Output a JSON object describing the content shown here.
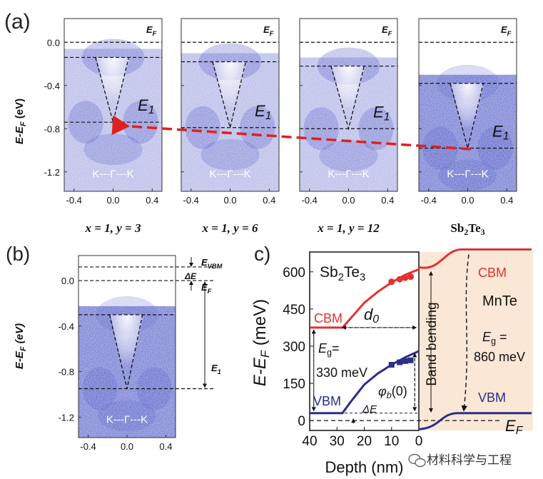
{
  "panel_labels": {
    "a": "(a)",
    "b": "(b)",
    "c": "c)"
  },
  "watermark": "材料科学与工程",
  "colors": {
    "cbm": "#e53030",
    "vbm": "#2a2f8a",
    "arpes": "#3c46c0",
    "arrow": "#e02020",
    "shade": "#fbe7d6"
  },
  "chart_data": [
    {
      "type": "heatmap",
      "panel": "a",
      "ylabel": "E-E_F (eV)",
      "ylabel_main": "E-E",
      "ylabel_sub": "F",
      "ylabel_unit": " (eV)",
      "yticks": [
        0.0,
        -0.4,
        -0.8,
        -1.2
      ],
      "ytick_labels": [
        "0.0",
        "-0.4",
        "-0.8",
        "-1.2"
      ],
      "ylim": [
        -1.38,
        0.22
      ],
      "xticks": [
        -0.4,
        0.0,
        0.4
      ],
      "xtick_labels": [
        "-0.4",
        "0.0",
        "0.4"
      ],
      "xlim": [
        -0.5,
        0.5
      ],
      "ef_label": "E",
      "ef_sub": "F",
      "e1_label": "E",
      "e1_sub": "1",
      "kpath_label": "K---Γ---K",
      "panels": [
        {
          "caption": "x = 1, y = 3",
          "vbm": -0.14,
          "e1": -0.74
        },
        {
          "caption": "x = 1, y = 6",
          "vbm": -0.18,
          "e1": -0.79
        },
        {
          "caption": "x = 1, y = 12",
          "vbm": -0.22,
          "e1": -0.8
        },
        {
          "caption": "Sb2Te3",
          "vbm": -0.38,
          "e1": -0.98
        }
      ]
    },
    {
      "type": "heatmap",
      "panel": "b",
      "ylabel": "E-E_F (eV)",
      "yticks": [
        0.0,
        -0.4,
        -0.8,
        -1.2
      ],
      "ytick_labels": [
        "0.0",
        "-0.4",
        "-0.8",
        "-1.2"
      ],
      "ylim": [
        -1.38,
        0.22
      ],
      "xticks": [
        -0.4,
        0.0,
        0.4
      ],
      "xtick_labels": [
        "-0.4",
        "0.0",
        "0.4"
      ],
      "xlim": [
        -0.5,
        0.5
      ],
      "levels": {
        "vbm_ref": 0.12,
        "ef": 0.0,
        "vbm": -0.3,
        "e1": -0.95
      },
      "annotations": {
        "evbm": "E",
        "evbm_sub": "VBM",
        "delta_e": "ΔE",
        "ef": "E",
        "ef_sub": "F",
        "e1": "E",
        "e1_sub": "1"
      },
      "kpath_label": "K---Γ---K"
    },
    {
      "type": "line",
      "panel": "c",
      "xlabel": "Depth (nm)",
      "ylabel": "E-E_F (meV)",
      "ylabel_main": "E-E",
      "ylabel_sub": "F",
      "ylabel_unit": " (meV)",
      "xlim": [
        40,
        0
      ],
      "ylim": [
        -40,
        680
      ],
      "xticks": [
        40,
        30,
        20,
        10,
        0
      ],
      "xtick_labels": [
        "40",
        "30",
        "20",
        "10",
        "0"
      ],
      "yticks": [
        0,
        150,
        300,
        450,
        600
      ],
      "ytick_labels": [
        "0",
        "150",
        "300",
        "450",
        "600"
      ],
      "series": [
        {
          "name": "CBM",
          "x": [
            40,
            28,
            25,
            20,
            15,
            10,
            5,
            0
          ],
          "y": [
            375,
            375,
            412,
            475,
            520,
            557,
            588,
            610
          ]
        },
        {
          "name": "VBM",
          "x": [
            40,
            28,
            25,
            20,
            15,
            10,
            5,
            0
          ],
          "y": [
            30,
            30,
            75,
            145,
            190,
            225,
            255,
            280
          ]
        }
      ],
      "markers": {
        "cbm": {
          "x": [
            10,
            7,
            5,
            3
          ],
          "y": [
            560,
            570,
            576,
            580
          ]
        },
        "vbm": {
          "x": [
            10,
            7,
            5,
            3
          ],
          "y": [
            225,
            235,
            240,
            243
          ]
        }
      },
      "mnte": {
        "cbm": 690,
        "vbm": 30,
        "label": "MnTe",
        "eg": "860 meV",
        "eg_prefix": "E",
        "eg_sub": "g",
        "eg_suffix": " ="
      },
      "levels": {
        "ef": 0,
        "delta_e": 30
      },
      "labels": {
        "material": "Sb2Te3",
        "cbm": "CBM",
        "vbm": "VBM",
        "d0": "d",
        "d0_sub": "0",
        "eg_prefix": "E",
        "eg_sub": "g",
        "eg_suffix": "=",
        "eg_value": "330 meV",
        "phi": "φ",
        "phi_sub": "b",
        "phi_arg": "(0)",
        "delta_e": "ΔE",
        "band_bending": "Band bending",
        "ef": "E",
        "ef_sub": "F"
      }
    }
  ]
}
